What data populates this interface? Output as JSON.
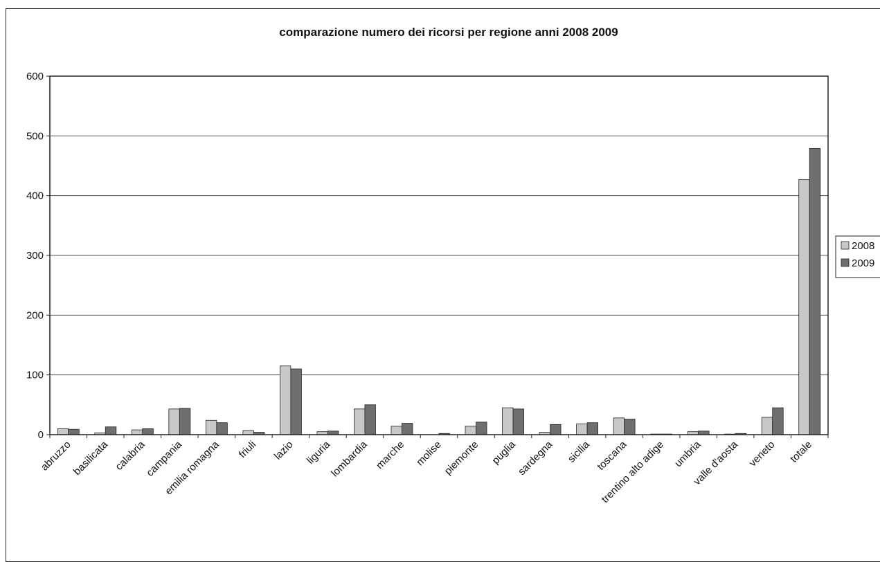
{
  "chart_data": {
    "type": "bar",
    "title": "comparazione numero dei ricorsi per regione anni 2008 2009",
    "xlabel": "",
    "ylabel": "",
    "ylim": [
      0,
      600
    ],
    "yticks": [
      0,
      100,
      200,
      300,
      400,
      500,
      600
    ],
    "grid": true,
    "legend_position": "right",
    "categories": [
      "abruzzo",
      "basilicata",
      "calabria",
      "campania",
      "emilia romagna",
      "friuli",
      "lazio",
      "liguria",
      "lombardia",
      "marche",
      "molise",
      "piemonte",
      "puglia",
      "sardegna",
      "sicilia",
      "toscana",
      "trentino alto adige",
      "umbria",
      "valle d'aosta",
      "veneto",
      "totale"
    ],
    "series": [
      {
        "name": "2008",
        "color": "#c8c8c8",
        "values": [
          10,
          3,
          8,
          43,
          24,
          7,
          115,
          5,
          43,
          14,
          0,
          14,
          45,
          4,
          18,
          28,
          1,
          5,
          1,
          29,
          427
        ]
      },
      {
        "name": "2009",
        "color": "#6f6f6f",
        "values": [
          9,
          13,
          10,
          44,
          20,
          4,
          110,
          6,
          50,
          19,
          2,
          21,
          43,
          17,
          20,
          26,
          1,
          6,
          2,
          45,
          479
        ]
      }
    ]
  }
}
